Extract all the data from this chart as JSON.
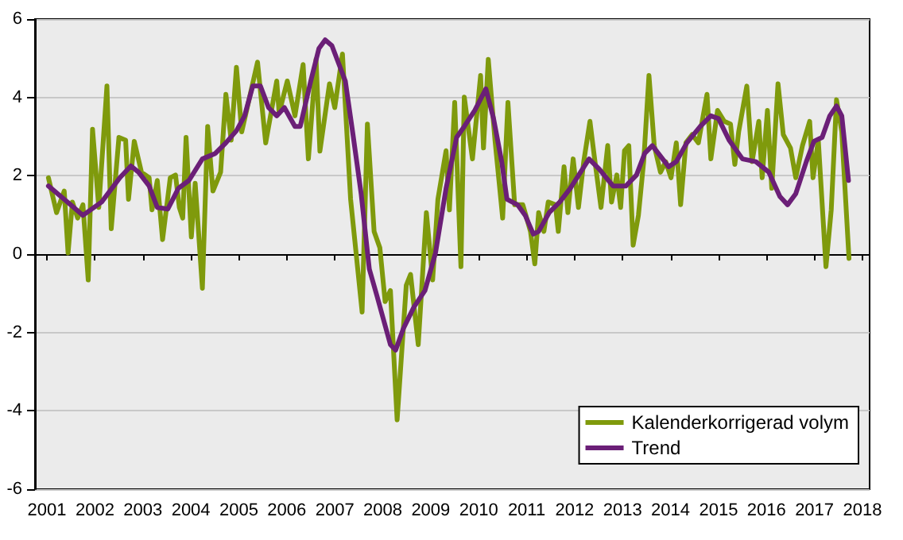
{
  "chart_data": {
    "type": "line",
    "xlim": [
      2000.75,
      2018.15
    ],
    "xticks": [
      2001,
      2002,
      2003,
      2004,
      2005,
      2006,
      2007,
      2008,
      2009,
      2010,
      2011,
      2012,
      2013,
      2014,
      2015,
      2016,
      2017,
      2018
    ],
    "ylim": [
      -6,
      6
    ],
    "yticks": [
      -6,
      -4,
      -2,
      0,
      2,
      4,
      6
    ],
    "grid": "y",
    "legend": "bottom right",
    "marker": "none",
    "line_style": "solid",
    "series": [
      {
        "name": "Kalenderkorrigerad volym",
        "color": "#7f9a0c",
        "x": [
          2001.03,
          2001.2,
          2001.36,
          2001.44,
          2001.53,
          2001.64,
          2001.75,
          2001.86,
          2001.95,
          2002.08,
          2002.25,
          2002.34,
          2002.5,
          2002.64,
          2002.7,
          2002.82,
          2002.97,
          2003.13,
          2003.19,
          2003.3,
          2003.41,
          2003.57,
          2003.68,
          2003.76,
          2003.83,
          2003.9,
          2004.01,
          2004.09,
          2004.24,
          2004.35,
          2004.46,
          2004.62,
          2004.73,
          2004.84,
          2004.95,
          2005.06,
          2005.39,
          2005.56,
          2005.79,
          2005.84,
          2006.01,
          2006.17,
          2006.34,
          2006.45,
          2006.61,
          2006.69,
          2006.89,
          2007.0,
          2007.16,
          2007.33,
          2007.57,
          2007.68,
          2007.82,
          2007.94,
          2008.05,
          2008.16,
          2008.3,
          2008.49,
          2008.58,
          2008.74,
          2008.91,
          2009.04,
          2009.15,
          2009.32,
          2009.39,
          2009.5,
          2009.63,
          2009.7,
          2009.87,
          2010.04,
          2010.1,
          2010.2,
          2010.34,
          2010.5,
          2010.61,
          2010.75,
          2010.92,
          2011.08,
          2011.17,
          2011.25,
          2011.36,
          2011.45,
          2011.6,
          2011.66,
          2011.78,
          2011.86,
          2011.97,
          2012.08,
          2012.19,
          2012.32,
          2012.41,
          2012.55,
          2012.69,
          2012.77,
          2012.88,
          2012.96,
          2013.04,
          2013.13,
          2013.22,
          2013.33,
          2013.44,
          2013.55,
          2013.66,
          2013.79,
          2013.9,
          2014.01,
          2014.12,
          2014.21,
          2014.32,
          2014.45,
          2014.58,
          2014.76,
          2014.84,
          2014.98,
          2015.12,
          2015.25,
          2015.34,
          2015.42,
          2015.59,
          2015.7,
          2015.84,
          2015.91,
          2016.02,
          2016.11,
          2016.24,
          2016.35,
          2016.5,
          2016.61,
          2016.75,
          2016.9,
          2016.97,
          2017.08,
          2017.24,
          2017.35,
          2017.46,
          2017.57,
          2017.72
        ],
        "values": [
          1.95,
          1.06,
          1.61,
          0.03,
          1.33,
          0.92,
          1.26,
          -0.66,
          3.19,
          1.19,
          4.29,
          0.65,
          2.98,
          2.91,
          1.4,
          2.88,
          2.09,
          1.95,
          1.13,
          1.88,
          0.37,
          1.95,
          2.02,
          1.19,
          0.92,
          2.98,
          0.44,
          1.81,
          -0.87,
          3.26,
          1.61,
          2.09,
          4.08,
          2.91,
          4.77,
          3.12,
          4.9,
          2.84,
          4.42,
          3.6,
          4.42,
          3.53,
          4.84,
          2.43,
          4.97,
          2.63,
          4.35,
          3.74,
          5.11,
          1.4,
          -1.48,
          3.32,
          0.58,
          0.16,
          -1.21,
          -0.93,
          -4.23,
          -0.8,
          -0.52,
          -2.31,
          1.06,
          -0.66,
          1.4,
          2.64,
          1.13,
          3.87,
          -0.32,
          4.01,
          2.43,
          4.56,
          2.71,
          4.97,
          2.91,
          0.92,
          3.87,
          1.26,
          1.26,
          0.58,
          -0.25,
          1.06,
          0.58,
          1.33,
          1.26,
          0.58,
          2.23,
          1.06,
          2.43,
          1.19,
          2.36,
          3.39,
          2.5,
          1.19,
          2.77,
          1.33,
          2.02,
          1.19,
          2.64,
          2.77,
          0.23,
          0.99,
          2.36,
          4.56,
          2.77,
          2.09,
          2.36,
          1.95,
          2.84,
          1.26,
          2.84,
          3.05,
          2.84,
          4.08,
          2.43,
          3.67,
          3.39,
          3.32,
          2.29,
          3.12,
          4.29,
          2.36,
          3.39,
          1.95,
          3.67,
          1.68,
          4.35,
          3.05,
          2.71,
          1.95,
          2.77,
          3.39,
          1.95,
          2.91,
          -0.32,
          1.13,
          3.94,
          3.12,
          -0.11
        ]
      },
      {
        "name": "Trend",
        "color": "#6b1f77",
        "x": [
          2001.03,
          2001.36,
          2001.75,
          2002.14,
          2002.52,
          2002.75,
          2002.91,
          2003.13,
          2003.3,
          2003.52,
          2003.74,
          2003.96,
          2004.24,
          2004.51,
          2004.73,
          2004.95,
          2005.12,
          2005.29,
          2005.45,
          2005.62,
          2005.79,
          2005.95,
          2006.17,
          2006.28,
          2006.5,
          2006.67,
          2006.8,
          2006.94,
          2007.22,
          2007.38,
          2007.55,
          2007.72,
          2007.88,
          2008.16,
          2008.27,
          2008.43,
          2008.65,
          2008.88,
          2009.1,
          2009.32,
          2009.54,
          2009.7,
          2009.92,
          2010.15,
          2010.31,
          2010.48,
          2010.59,
          2010.81,
          2010.97,
          2011.14,
          2011.25,
          2011.47,
          2011.69,
          2011.91,
          2012.3,
          2012.52,
          2012.8,
          2013.07,
          2013.29,
          2013.46,
          2013.62,
          2013.79,
          2013.96,
          2014.12,
          2014.34,
          2014.62,
          2014.84,
          2015.0,
          2015.22,
          2015.5,
          2015.78,
          2016.05,
          2016.28,
          2016.44,
          2016.61,
          2016.83,
          2016.99,
          2017.16,
          2017.32,
          2017.46,
          2017.57,
          2017.71
        ],
        "values": [
          1.74,
          1.4,
          0.99,
          1.33,
          1.95,
          2.25,
          2.09,
          1.74,
          1.19,
          1.15,
          1.68,
          1.88,
          2.43,
          2.57,
          2.84,
          3.15,
          3.53,
          4.29,
          4.29,
          3.74,
          3.53,
          3.74,
          3.26,
          3.26,
          4.42,
          5.25,
          5.47,
          5.32,
          4.42,
          3.05,
          1.54,
          -0.38,
          -1.07,
          -2.31,
          -2.45,
          -1.9,
          -1.35,
          -0.93,
          0.03,
          1.68,
          2.98,
          3.26,
          3.67,
          4.22,
          3.46,
          2.36,
          1.4,
          1.26,
          0.99,
          0.51,
          0.58,
          1.06,
          1.33,
          1.68,
          2.43,
          2.16,
          1.74,
          1.74,
          2.02,
          2.57,
          2.77,
          2.5,
          2.23,
          2.36,
          2.84,
          3.26,
          3.53,
          3.46,
          2.91,
          2.43,
          2.36,
          2.09,
          1.47,
          1.26,
          1.54,
          2.36,
          2.88,
          2.98,
          3.53,
          3.78,
          3.53,
          1.88
        ]
      }
    ]
  }
}
